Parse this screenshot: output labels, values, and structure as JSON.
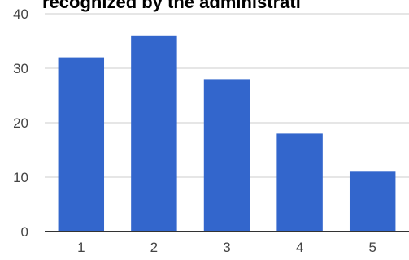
{
  "chart_data": {
    "type": "bar",
    "title": "recognized by the administrati",
    "categories": [
      "1",
      "2",
      "3",
      "4",
      "5"
    ],
    "values": [
      32,
      36,
      28,
      18,
      11
    ],
    "ylim": [
      0,
      40
    ],
    "yticks": [
      "0",
      "10",
      "20",
      "30",
      "40"
    ],
    "xlabel": "",
    "ylabel": "",
    "grid": true,
    "bar_color": "#3366cc"
  }
}
